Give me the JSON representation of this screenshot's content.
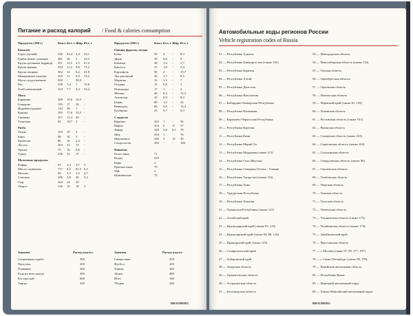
{
  "left_page": {
    "title": "Питание и расход калорий",
    "title_en": "/ Food & calories consumption",
    "headers": [
      "Продукты (100 г)",
      "Ккал.",
      "Бел. г",
      "Жир. г",
      "Угл. г"
    ],
    "col1": [
      {
        "section": "Бакалея",
        "rows": [
          [
            "Горох (целый)",
            "336",
            "23,4",
            "2,4",
            "53,1"
          ],
          [
            "Грибы белые сушеные",
            "281",
            "36",
            "3",
            "23,5"
          ],
          [
            "Крупа гречневая (ядрица)",
            "351",
            "12,5",
            "2,5",
            "67,4"
          ],
          [
            "Крупа манная",
            "354",
            "11,2",
            "0,8",
            "71,3"
          ],
          [
            "Крупа овсяная",
            "362",
            "12",
            "6,2",
            "61,8"
          ],
          [
            "Макаронные изделия",
            "359",
            "11",
            "0,9",
            "74,2"
          ],
          [
            "Масло подсолнечное",
            "929",
            "-",
            "99,9",
            "-"
          ],
          [
            "Рис",
            "358",
            "7,4",
            "1",
            "72,8"
          ],
          [
            "Хлеб пшеничный",
            "254",
            "7,7",
            "2,4",
            "53,4"
          ]
        ]
      },
      {
        "section": "Мясо",
        "rows": [
          [
            "Баранина",
            "209",
            "15,6",
            "16,3",
            "-"
          ],
          [
            "Говядина",
            "195",
            "17",
            "16",
            "-"
          ],
          [
            "Индейка (грудка)",
            "124",
            "26",
            "1",
            "-"
          ],
          [
            "Курица",
            "165",
            "17,6",
            "23,5",
            "-"
          ],
          [
            "Свинина",
            "357",
            "11,4",
            "49",
            "-"
          ],
          [
            "Телятина",
            "92",
            "19,7",
            "2",
            "-"
          ]
        ]
      },
      {
        "section": "Рыба",
        "rows": [
          [
            "Окунь",
            "103",
            "19",
            "3",
            "-"
          ],
          [
            "Карп",
            "96",
            "16",
            "5",
            "-"
          ],
          [
            "Креветки",
            "86",
            "16",
            "2,2",
            "-"
          ],
          [
            "Лосось",
            "203",
            "21",
            "13",
            "-"
          ],
          [
            "Треска",
            "75",
            "16",
            "0,6",
            "-"
          ],
          [
            "Тунец",
            "226",
            "22",
            "15",
            "-"
          ]
        ]
      },
      {
        "section": "Молочные продукты",
        "rows": [
          [
            "Кефир",
            "67",
            "3,3",
            "3,7",
            "5"
          ],
          [
            "Масло сливочное",
            "717",
            "0,5",
            "81,5",
            "0,5"
          ],
          [
            "Молоко",
            "60",
            "3,3",
            "3,2",
            "4,7"
          ],
          [
            "Сметана",
            "206",
            "2,8",
            "20",
            "3,2"
          ],
          [
            "Сыр",
            "364",
            "24",
            "30",
            "-"
          ],
          [
            "Творог",
            "236",
            "18",
            "18",
            "3"
          ]
        ]
      }
    ],
    "col2": [
      {
        "section": "Овощи, фрукты, ягоды",
        "rows": [
          [
            "Бобы",
            "59",
            "6",
            "-",
            "8,3"
          ],
          [
            "Дыня",
            "39",
            "0,6",
            "-",
            "9"
          ],
          [
            "Кабачки",
            "30",
            "1,6",
            "-",
            "5,7"
          ],
          [
            "Капуста",
            "31",
            "1,8",
            "-",
            "5,4"
          ],
          [
            "Картофель",
            "90",
            "2",
            "-",
            "19,7"
          ],
          [
            "Лук репчатый",
            "43",
            "1,7",
            "-",
            "9,5"
          ],
          [
            "Морковь",
            "33",
            "1,3",
            "-",
            "7"
          ],
          [
            "Огурцы",
            "15",
            "0,8",
            "-",
            "3"
          ],
          [
            "Помидоры",
            "17",
            "1",
            "-",
            "3"
          ],
          [
            "Яблоки",
            "46",
            "0,4",
            "-",
            "11,3"
          ],
          [
            "Апельсин",
            "43",
            "0,9",
            "-",
            "8,4"
          ],
          [
            "Банан",
            "89",
            "1,5",
            "-",
            "22"
          ],
          [
            "Виноград",
            "69",
            "0,6",
            "-",
            "15,4"
          ],
          [
            "Клубника",
            "41",
            "0,7",
            "-",
            "6,3"
          ]
        ]
      },
      {
        "section": "Сладости",
        "rows": [
          [
            "Варенье",
            "222",
            "1",
            "-",
            "56"
          ],
          [
            "Вафли",
            "334",
            "6",
            "11",
            "57"
          ],
          [
            "Зефир",
            "326",
            "0,8",
            "0,1",
            "78"
          ],
          [
            "Мед",
            "294",
            "1",
            "-",
            "76"
          ],
          [
            "Мороженое",
            "240",
            "5",
            "13",
            "20"
          ],
          [
            "Сахар-песок",
            "392",
            "-",
            "-",
            "100"
          ]
        ]
      },
      {
        "section": "Напитки",
        "rows": [
          [
            "Белое вино",
            "71",
            "",
            "",
            ""
          ],
          [
            "Водка",
            "235",
            "",
            "",
            ""
          ],
          [
            "Кофе",
            "2",
            "",
            "",
            ""
          ],
          [
            "Красное вино",
            "75",
            "",
            "",
            ""
          ],
          [
            "Чай",
            "2",
            "",
            "",
            ""
          ],
          [
            "Шампанское",
            "75",
            "",
            "",
            ""
          ]
        ]
      }
    ],
    "activity_header": [
      "Занятия",
      "Расход ккал/ч"
    ],
    "activities": [
      [
        "Спортивная ходьба",
        "300"
      ],
      [
        "Прогулка",
        "200"
      ],
      [
        "Плавание",
        "500"
      ],
      [
        "Езда на велосипеде",
        "400"
      ],
      [
        "Бег трусцой",
        "600"
      ],
      [
        "Танцы",
        "350"
      ],
      [
        "Гимнастика",
        "250"
      ],
      [
        "Футбол",
        "450"
      ],
      [
        "Теннис",
        "420"
      ],
      [
        "Лыжи",
        "480"
      ],
      [
        "Йога",
        "180"
      ],
      [
        "Уборка",
        "240"
      ]
    ],
    "brand": "BRAUBERG"
  },
  "right_page": {
    "title": "Автомобильные коды регионов России",
    "subtitle": "Vehicle registration codes of Russia",
    "col1": [
      "01 — Республика Адыгея",
      "02 — Республика Башкортостан (также 102)",
      "03 — Республика Бурятия",
      "04 — Республика Алтай",
      "05 — Республика Дагестан",
      "06 — Республика Ингушетия",
      "07 — Кабардино-Балкарская Республика",
      "08 — Республика Калмыкия",
      "09 — Карачаево-Черкесская Республика",
      "10 — Республика Карелия",
      "11 — Республика Коми",
      "12 — Республика Марий Эл",
      "13 — Республика Мордовия (также 113)",
      "14 — Республика Саха (Якутия)",
      "15 — Республика Северная Осетия - Алания",
      "16 — Республика Татарстан (также 116)",
      "17 — Республика Тыва",
      "18 — Удмуртская Республика",
      "19 — Республика Хакасия",
      "21 — Чувашская Республика (также 121)",
      "22 — Алтайский край",
      "23 — Краснодарский край (также 93, 123)",
      "24 — Красноярский край (также 84, 88, 124)",
      "25 — Приморский край (также 125)",
      "26 — Ставропольский край",
      "27 — Хабаровский край",
      "28 — Амурская область",
      "29 — Архангельская область",
      "30 — Астраханская область",
      "31 — Белгородская область"
    ],
    "col2": [
      "53 — Новгородская область",
      "54 — Новосибирская область (также 154)",
      "55 — Омская область",
      "56 — Оренбургская область",
      "57 — Орловская область",
      "58 — Пензенская область",
      "59 — Пермский край (также 81, 159)",
      "60 — Псковская область",
      "61 — Ростовская область (также 161)",
      "62 — Рязанская область",
      "63 — Самарская область (также 163)",
      "64 — Саратовская область (также 164)",
      "65 — Сахалинская область",
      "66 — Свердловская область (также 96)",
      "67 — Смоленская область",
      "68 — Тамбовская область",
      "69 — Тверская область",
      "70 — Томская область",
      "71 — Тульская область",
      "72 — Тюменская область",
      "73 — Ульяновская область (также 173)",
      "74 — Челябинская область (также 174)",
      "75 — Забайкальский край",
      "76 — Ярославская область",
      "77 — г. Москва (также 97, 99, 177, 197)",
      "78 — г. Санкт-Петербург (также 98, 178)",
      "79 — Еврейская автономная область",
      "82 — Республика Крым",
      "83 — Ненецкий автономный округ",
      "86 — Ханты-Мансийский автономный округ"
    ],
    "brand": "BRAUBERG"
  }
}
